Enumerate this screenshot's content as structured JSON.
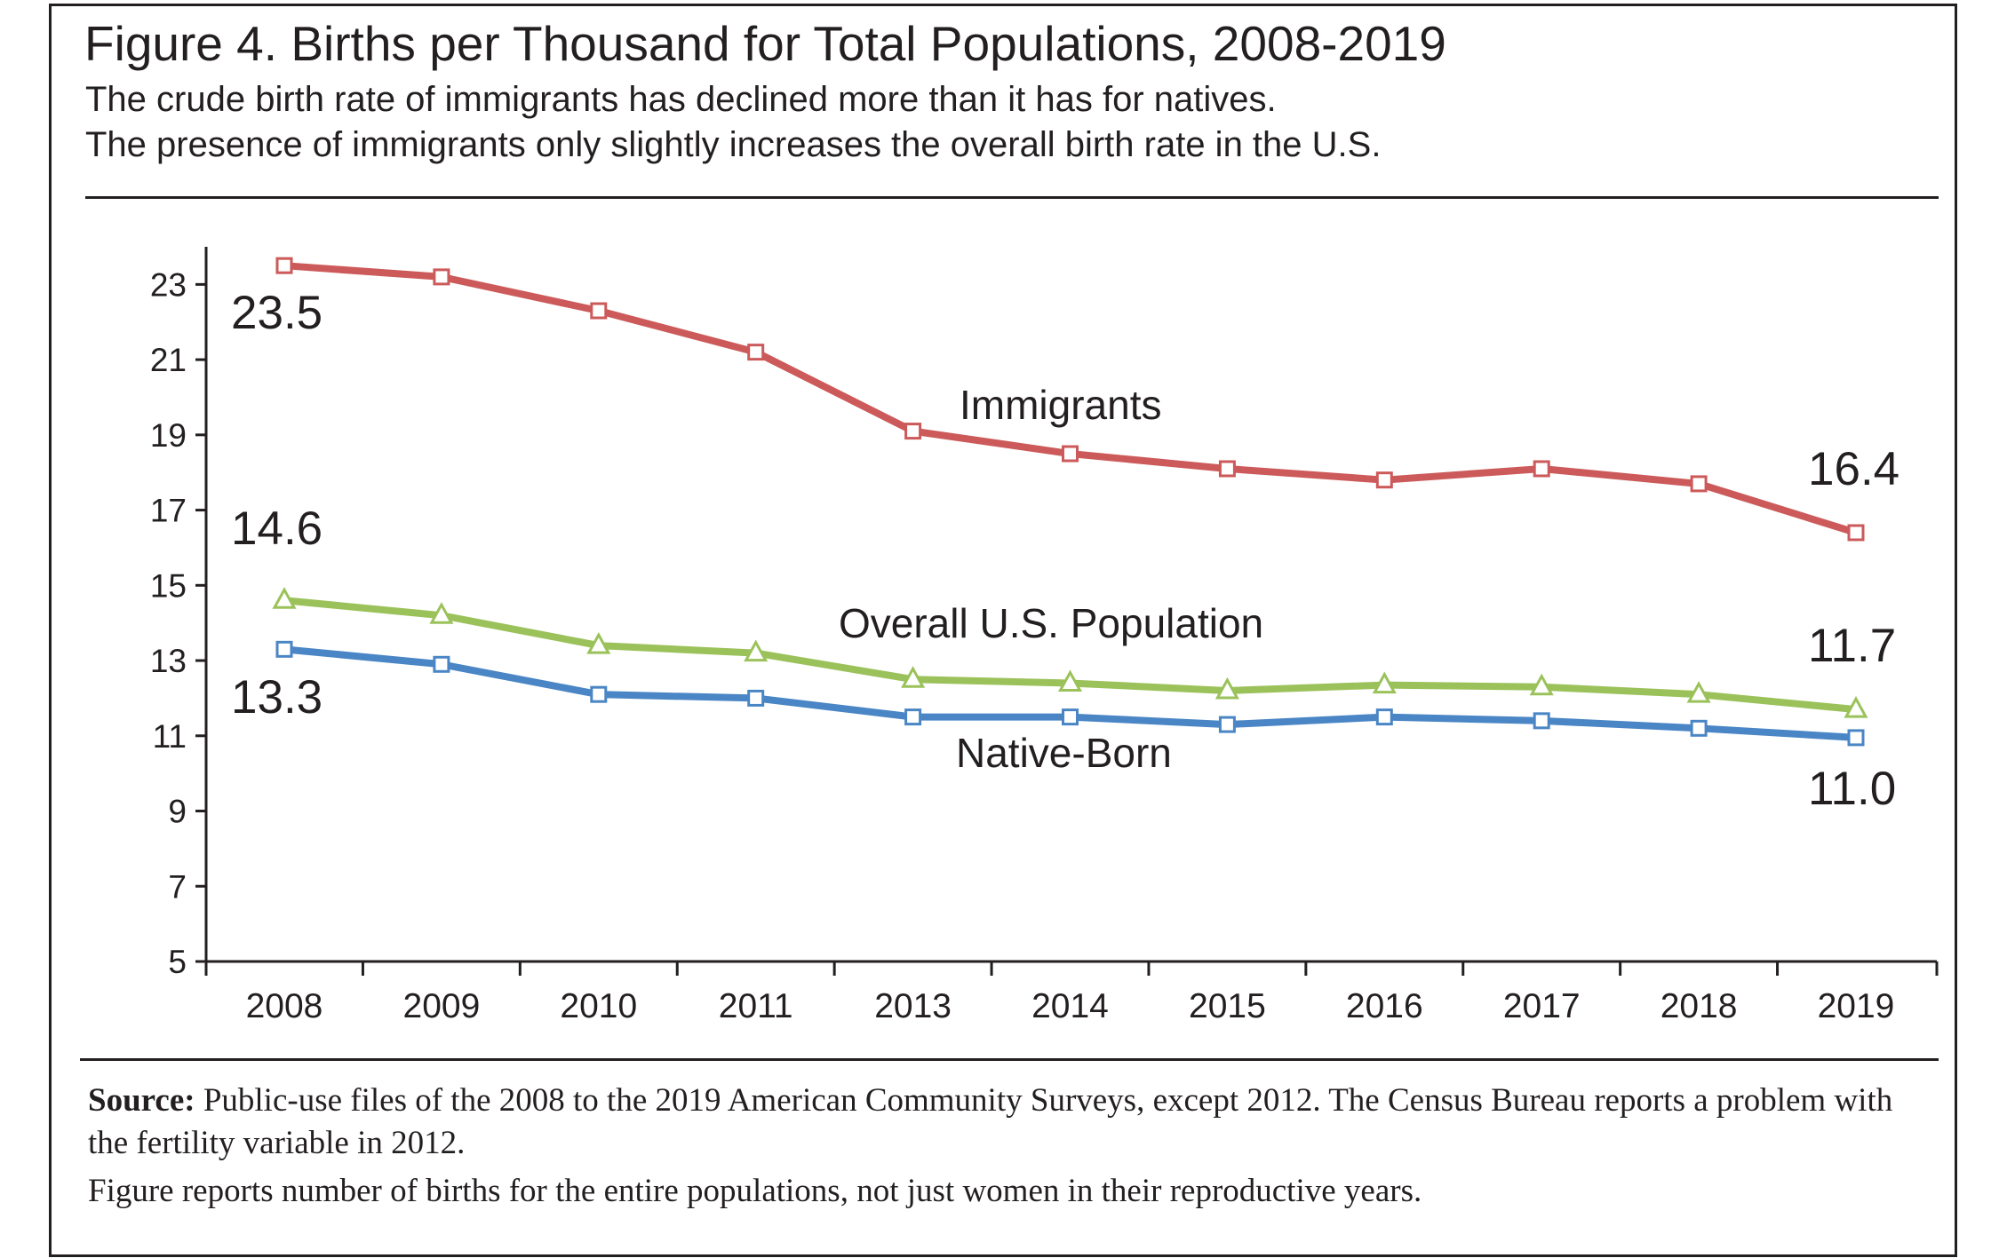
{
  "title": "Figure 4. Births per Thousand for Total Populations, 2008-2019",
  "subtitle_lines": [
    "The crude birth rate of immigrants has declined more than it has for natives.",
    "The presence of immigrants only slightly increases the overall birth rate in the U.S."
  ],
  "footnote": {
    "source_label": "Source:",
    "source_text": " Public-use files of the 2008 to the 2019 American Community Surveys, except 2012. The Census Bureau reports a problem with the fertility variable in 2012.",
    "extra_text": "Figure reports number of births for the entire populations, not just women in their reproductive years."
  },
  "colors": {
    "immigrants": "#cd5a5a",
    "overall": "#9bc25a",
    "native": "#4a86c5",
    "axis": "#231f20",
    "text": "#231f20"
  },
  "chart_data": {
    "type": "line",
    "title": "",
    "xlabel": "",
    "ylabel": "",
    "categories": [
      "2008",
      "2009",
      "2010",
      "2011",
      "2013",
      "2014",
      "2015",
      "2016",
      "2017",
      "2018",
      "2019"
    ],
    "ylim": [
      5,
      24
    ],
    "yticks": [
      5,
      7,
      9,
      11,
      13,
      15,
      17,
      19,
      21,
      23
    ],
    "grid": false,
    "legend": "none",
    "series": [
      {
        "key": "immigrants",
        "name": "Immigrants",
        "marker": "square",
        "values": [
          23.5,
          23.2,
          22.3,
          21.2,
          19.1,
          18.5,
          18.1,
          17.8,
          18.1,
          17.7,
          16.4
        ]
      },
      {
        "key": "overall",
        "name": "Overall U.S. Population",
        "marker": "triangle",
        "values": [
          14.6,
          14.2,
          13.4,
          13.2,
          12.5,
          12.4,
          12.2,
          12.35,
          12.3,
          12.1,
          11.7
        ]
      },
      {
        "key": "native",
        "name": "Native-Born",
        "marker": "square",
        "values": [
          13.3,
          12.9,
          12.1,
          12.0,
          11.5,
          11.5,
          11.3,
          11.5,
          11.4,
          11.2,
          10.95
        ]
      }
    ],
    "annotations": [
      {
        "key": "imm_start",
        "text": "23.5"
      },
      {
        "key": "imm_end",
        "text": "16.4"
      },
      {
        "key": "ovr_start",
        "text": "14.6"
      },
      {
        "key": "ovr_end",
        "text": "11.7"
      },
      {
        "key": "nat_start",
        "text": "13.3"
      },
      {
        "key": "nat_end",
        "text": "11.0"
      }
    ]
  }
}
